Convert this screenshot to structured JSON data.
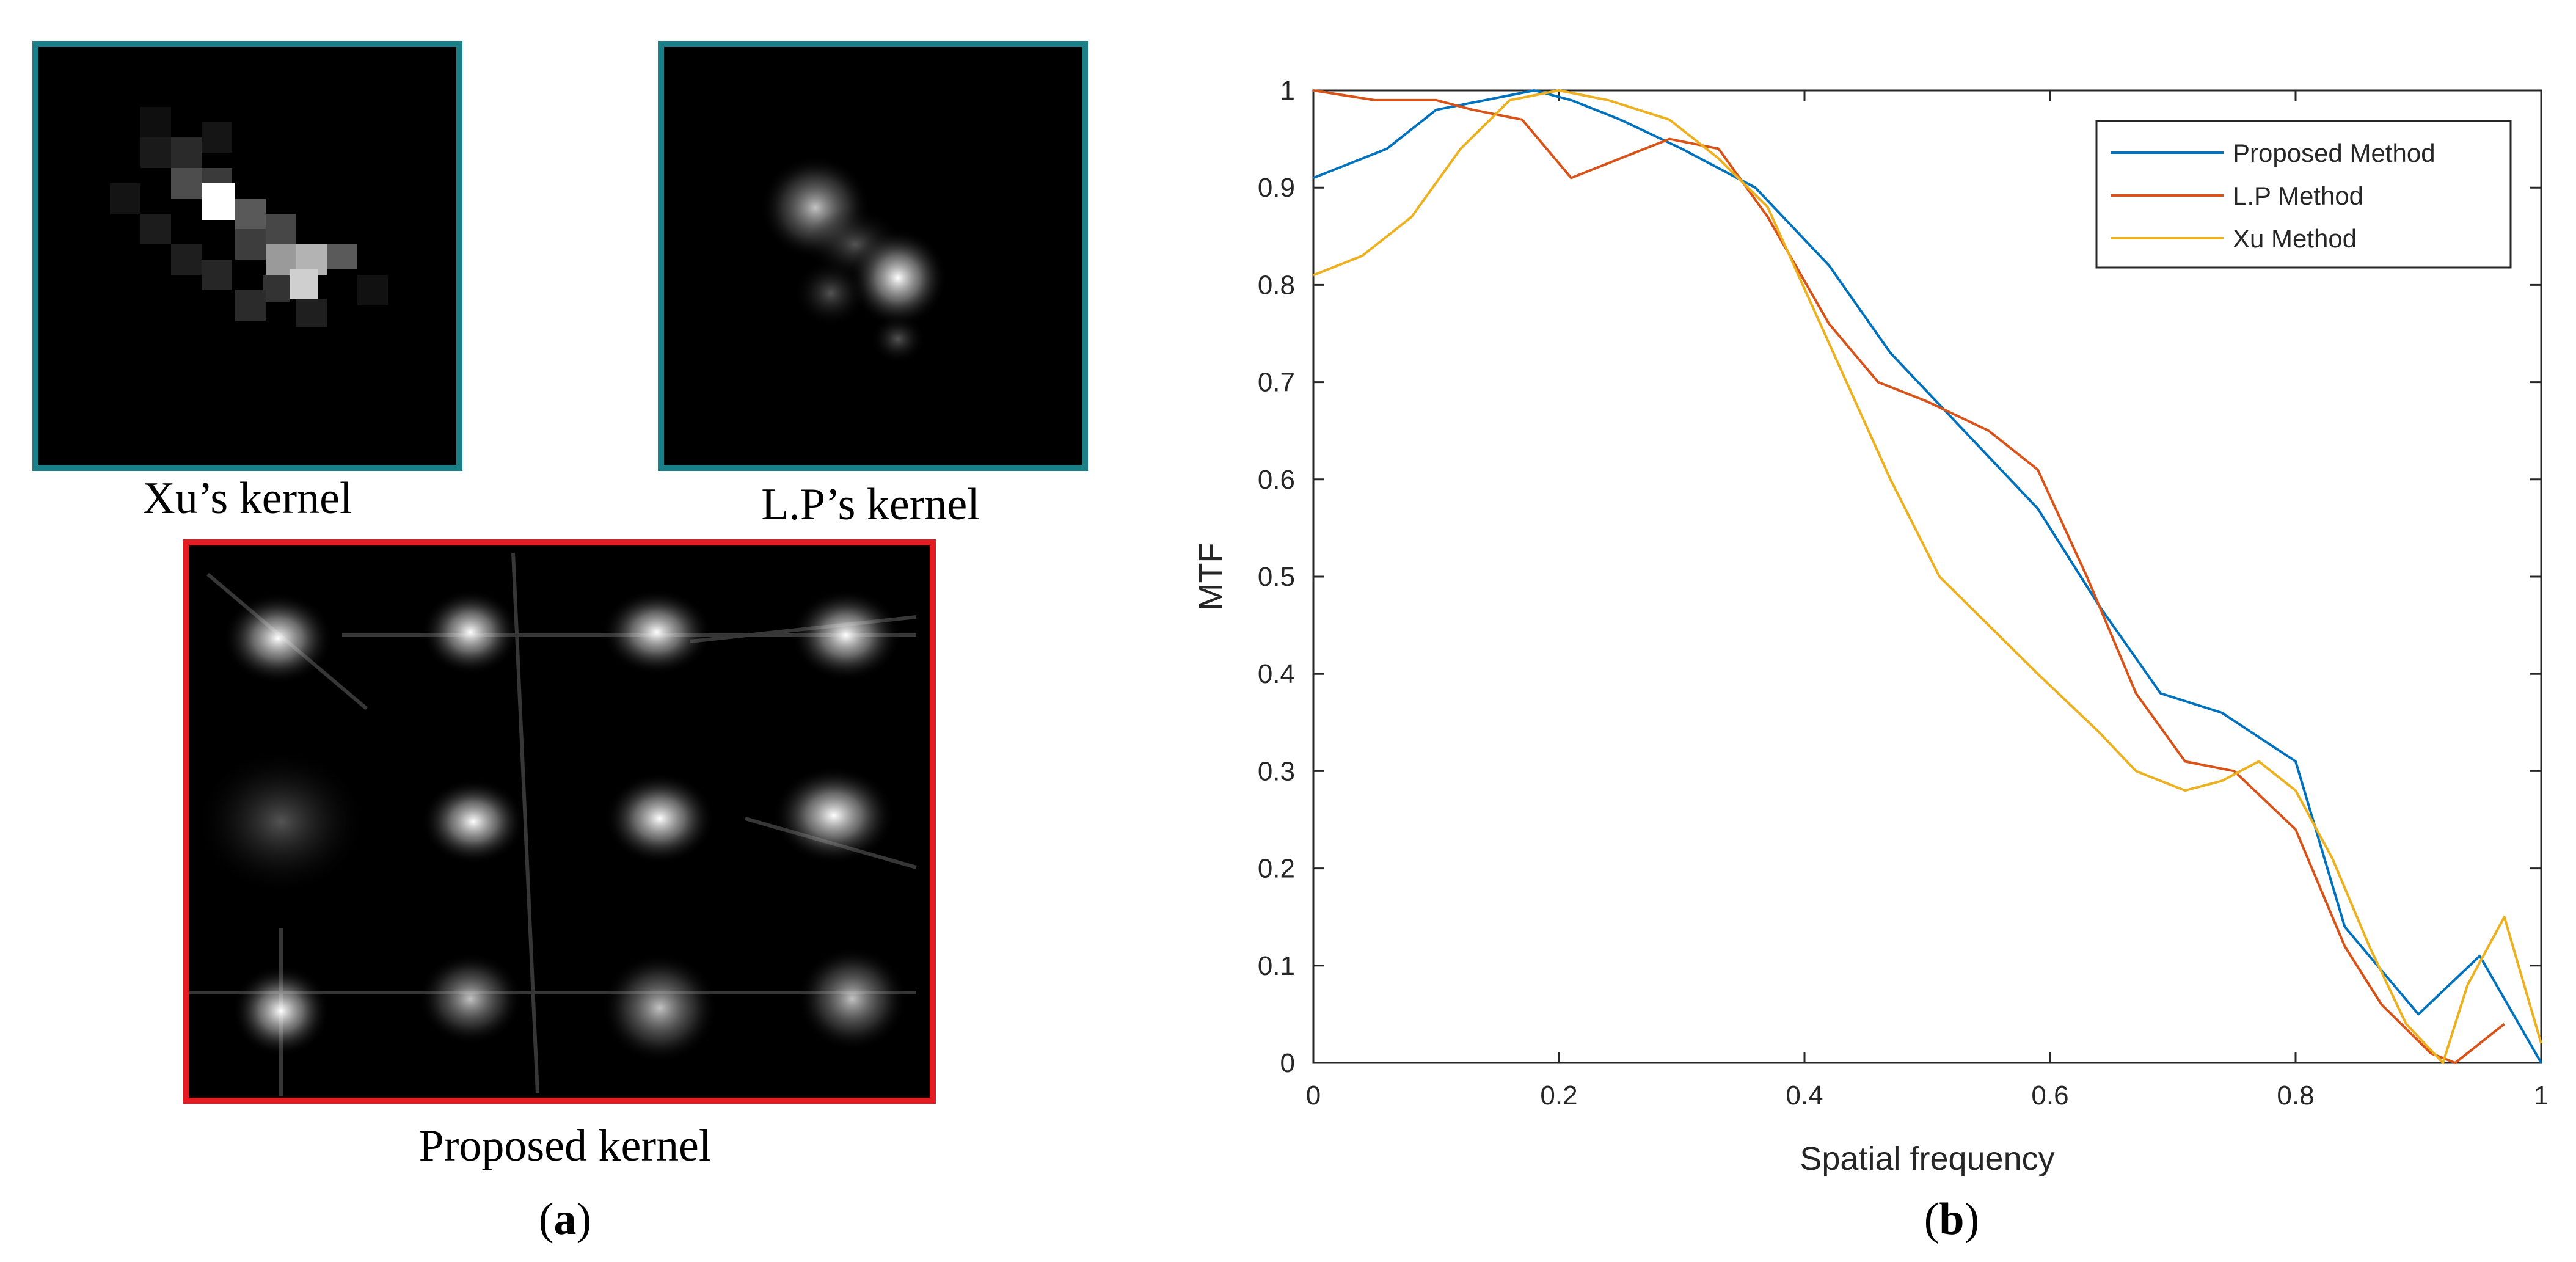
{
  "figure": {
    "panel_a": {
      "kernel_xu_label": "Xu’s kernel",
      "kernel_lp_label": "L.P’s kernel",
      "kernel_proposed_label": "Proposed kernel",
      "panel_label_open": "(",
      "panel_label_letter": "a",
      "panel_label_close": ")",
      "frame_color_small": "#1a7f86",
      "frame_color_large": "#e31b23"
    },
    "panel_b": {
      "panel_label_open": "(",
      "panel_label_letter": "b",
      "panel_label_close": ")"
    }
  },
  "chart_data": {
    "type": "line",
    "xlabel": "Spatial frequency",
    "ylabel": "MTF",
    "xlim": [
      0,
      1
    ],
    "ylim": [
      0,
      1
    ],
    "xticks": [
      "0",
      "0.2",
      "0.4",
      "0.6",
      "0.8",
      "1"
    ],
    "yticks": [
      "0",
      "0.1",
      "0.2",
      "0.3",
      "0.4",
      "0.5",
      "0.6",
      "0.7",
      "0.8",
      "0.9",
      "1"
    ],
    "legend_position": "top-right",
    "grid": false,
    "series": [
      {
        "name": "Proposed Method",
        "color": "#0072bd",
        "x": [
          0,
          0.06,
          0.1,
          0.18,
          0.21,
          0.25,
          0.3,
          0.36,
          0.42,
          0.47,
          0.53,
          0.59,
          0.64,
          0.69,
          0.74,
          0.8,
          0.84,
          0.9,
          0.95,
          1.0
        ],
        "y": [
          0.91,
          0.94,
          0.98,
          1.0,
          0.99,
          0.97,
          0.94,
          0.9,
          0.82,
          0.73,
          0.65,
          0.57,
          0.47,
          0.38,
          0.36,
          0.31,
          0.14,
          0.05,
          0.11,
          0.0
        ]
      },
      {
        "name": "L.P Method",
        "color": "#d95319",
        "x": [
          0,
          0.05,
          0.1,
          0.13,
          0.17,
          0.21,
          0.25,
          0.29,
          0.33,
          0.37,
          0.42,
          0.46,
          0.5,
          0.55,
          0.59,
          0.63,
          0.67,
          0.71,
          0.75,
          0.8,
          0.84,
          0.87,
          0.91,
          0.93,
          0.97
        ],
        "y": [
          1.0,
          0.99,
          0.99,
          0.98,
          0.97,
          0.91,
          0.93,
          0.95,
          0.94,
          0.87,
          0.76,
          0.7,
          0.68,
          0.65,
          0.61,
          0.5,
          0.38,
          0.31,
          0.3,
          0.24,
          0.12,
          0.06,
          0.01,
          0.0,
          0.04
        ]
      },
      {
        "name": "Xu Method",
        "color": "#edb120",
        "x": [
          0,
          0.04,
          0.08,
          0.12,
          0.16,
          0.2,
          0.24,
          0.29,
          0.33,
          0.37,
          0.42,
          0.47,
          0.51,
          0.55,
          0.59,
          0.64,
          0.67,
          0.71,
          0.74,
          0.77,
          0.8,
          0.83,
          0.86,
          0.89,
          0.92,
          0.94,
          0.97,
          1.0
        ],
        "y": [
          0.81,
          0.83,
          0.87,
          0.94,
          0.99,
          1.0,
          0.99,
          0.97,
          0.93,
          0.88,
          0.74,
          0.6,
          0.5,
          0.45,
          0.4,
          0.34,
          0.3,
          0.28,
          0.29,
          0.31,
          0.28,
          0.21,
          0.12,
          0.04,
          0.0,
          0.08,
          0.15,
          0.02
        ]
      }
    ]
  }
}
